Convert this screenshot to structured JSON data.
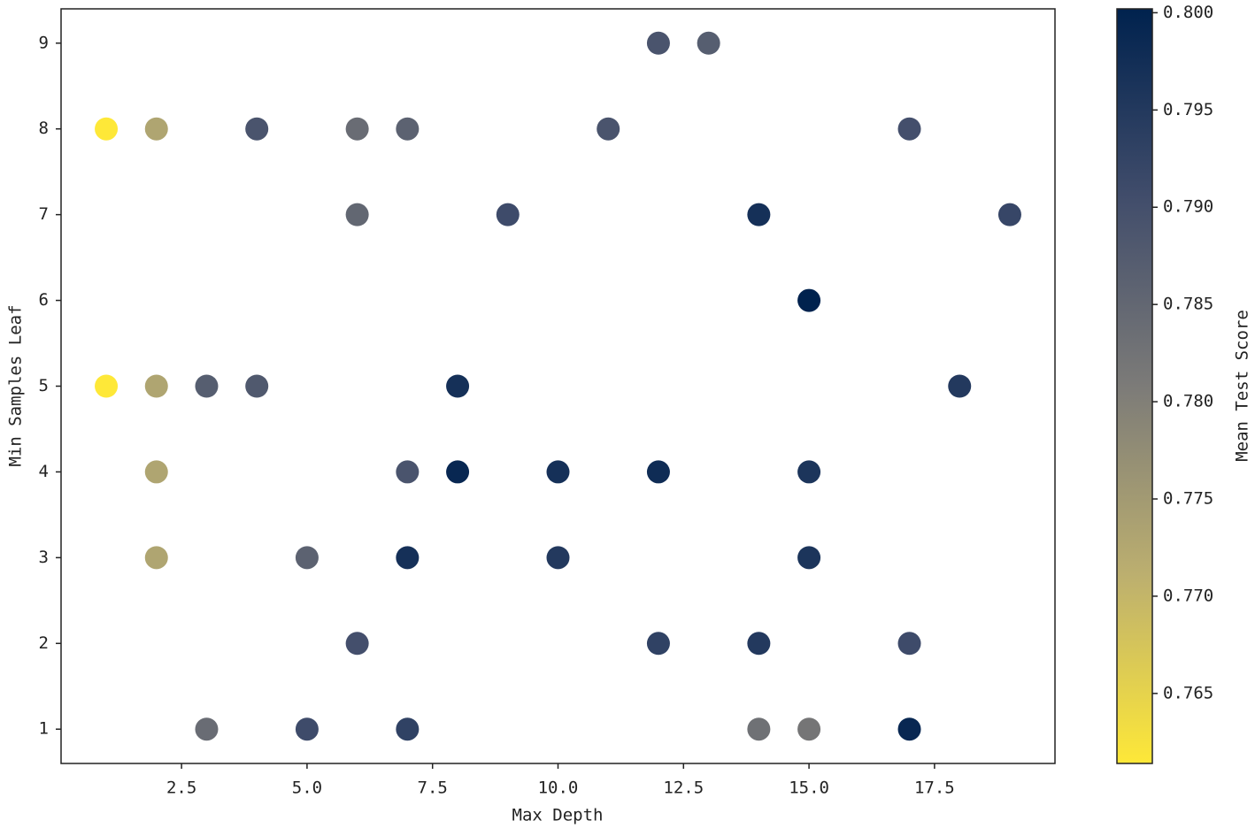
{
  "chart_data": {
    "type": "scatter",
    "xlabel": "Max Depth",
    "ylabel": "Min Samples Leaf",
    "x": [
      12,
      13,
      1,
      2,
      4,
      6,
      7,
      11,
      17,
      6,
      9,
      14,
      19,
      15,
      1,
      2,
      3,
      4,
      8,
      18,
      2,
      7,
      8,
      10,
      12,
      15,
      2,
      5,
      7,
      10,
      15,
      6,
      12,
      14,
      17,
      3,
      5,
      7,
      14,
      15,
      17
    ],
    "y": [
      9,
      9,
      8,
      8,
      8,
      8,
      8,
      8,
      8,
      7,
      7,
      7,
      7,
      6,
      5,
      5,
      5,
      5,
      5,
      5,
      4,
      4,
      4,
      4,
      4,
      4,
      3,
      3,
      3,
      3,
      3,
      2,
      2,
      2,
      2,
      1,
      1,
      1,
      1,
      1,
      1
    ],
    "c": [
      0.789,
      0.787,
      0.7614,
      0.773,
      0.789,
      0.784,
      0.786,
      0.789,
      0.79,
      0.785,
      0.791,
      0.797,
      0.792,
      0.8002,
      0.7614,
      0.773,
      0.787,
      0.788,
      0.797,
      0.795,
      0.773,
      0.789,
      0.799,
      0.797,
      0.798,
      0.796,
      0.773,
      0.786,
      0.797,
      0.795,
      0.796,
      0.79,
      0.793,
      0.795,
      0.791,
      0.784,
      0.791,
      0.793,
      0.783,
      0.782,
      0.799
    ],
    "xlim": [
      0.1,
      19.9
    ],
    "xticks": [
      2.5,
      {
        "value": 5,
        "label": "5.0"
      },
      7.5,
      {
        "value": 10,
        "label": "10.0"
      },
      12.5,
      {
        "value": 15,
        "label": "15.0"
      },
      17.5
    ],
    "ylim": [
      0.6,
      9.4
    ],
    "yticks": [
      1,
      2,
      3,
      4,
      5,
      6,
      7,
      8,
      9
    ],
    "colorbar": {
      "label": "Mean Test Score",
      "clim": [
        0.7614,
        0.8002
      ],
      "colormap": [
        "#fee838",
        "#bcaf6f",
        "#7c7b78",
        "#414d6b",
        "#00224e"
      ],
      "ticks": [
        0.765,
        {
          "value": 0.77,
          "label": "0.770"
        },
        0.775,
        {
          "value": 0.78,
          "label": "0.780"
        },
        0.785,
        {
          "value": 0.79,
          "label": "0.790"
        },
        0.795,
        {
          "value": 0.8,
          "label": "0.800"
        }
      ]
    }
  }
}
